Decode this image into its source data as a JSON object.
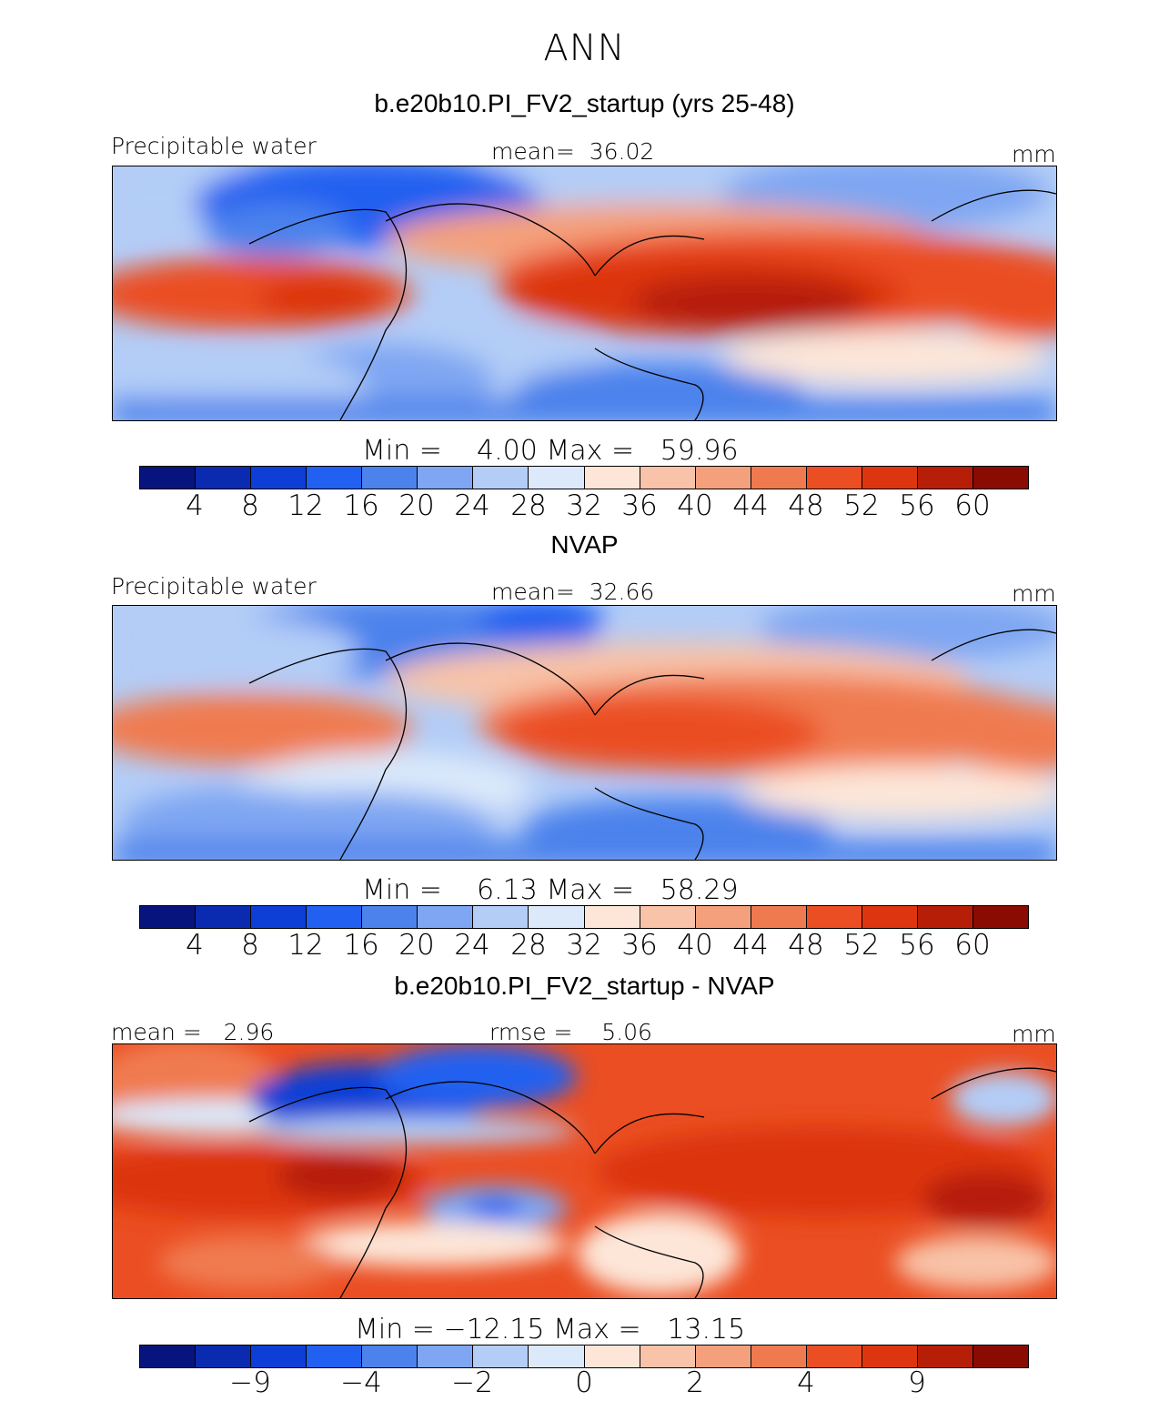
{
  "figure_title": "ANN",
  "palette": [
    "#08147d",
    "#0a2bb0",
    "#0d3fd6",
    "#2160f0",
    "#4b82ec",
    "#7ea6f2",
    "#b3cdf7",
    "#dbe9fa",
    "#fde6d8",
    "#f8c3a8",
    "#f4a07c",
    "#f07a50",
    "#eb4e22",
    "#dc3510",
    "#b61e08",
    "#8a0b02"
  ],
  "panels": [
    {
      "title": "b.e20b10.PI_FV2_startup (yrs 25-48)",
      "left_label": "Precipitable water",
      "center_label": "mean=  36.02",
      "right_label": "mm",
      "min_max": "Min =    4.00 Max =   59.96",
      "ticks": [
        "4",
        "8",
        "12",
        "16",
        "20",
        "24",
        "28",
        "32",
        "36",
        "40",
        "44",
        "48",
        "52",
        "56",
        "60"
      ]
    },
    {
      "title": "NVAP",
      "left_label": "Precipitable water",
      "center_label": "mean=  32.66",
      "right_label": "mm",
      "min_max": "Min =    6.13 Max =   58.29",
      "ticks": [
        "4",
        "8",
        "12",
        "16",
        "20",
        "24",
        "28",
        "32",
        "36",
        "40",
        "44",
        "48",
        "52",
        "56",
        "60"
      ]
    },
    {
      "title": "b.e20b10.PI_FV2_startup - NVAP",
      "left_label": "mean =   2.96",
      "center_label": "rmse =    5.06",
      "right_label": "mm",
      "min_max": "Min = −12.15 Max =   13.15",
      "ticks": [
        "−9",
        "−4",
        "−2",
        "0",
        "2",
        "4",
        "9"
      ]
    }
  ]
}
